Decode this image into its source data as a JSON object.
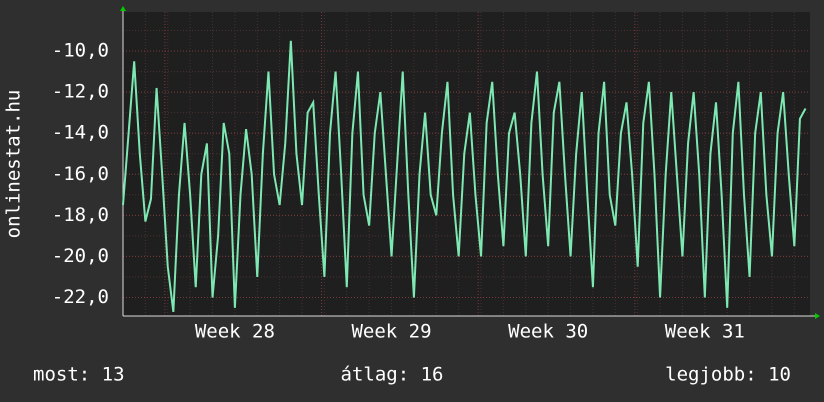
{
  "chart_data": {
    "type": "line",
    "y_label": "onlinestat.hu",
    "x": [
      0,
      0.25,
      0.5,
      0.75,
      1,
      1.25,
      1.5,
      1.75,
      2,
      2.25,
      2.5,
      2.75,
      3,
      3.25,
      3.5,
      3.75,
      4,
      4.25,
      4.5,
      4.75,
      5,
      5.25,
      5.5,
      5.75,
      6,
      6.25,
      6.5,
      6.75,
      7,
      7.25,
      7.5,
      7.75,
      8,
      8.25,
      8.5,
      8.75,
      9,
      9.25,
      9.5,
      9.75,
      10,
      10.25,
      10.5,
      10.75,
      11,
      11.25,
      11.5,
      11.75,
      12,
      12.25,
      12.5,
      12.75,
      13,
      13.25,
      13.5,
      13.75,
      14,
      14.25,
      14.5,
      14.75,
      15,
      15.25,
      15.5,
      15.75,
      16,
      16.25,
      16.5,
      16.75,
      17,
      17.25,
      17.5,
      17.75,
      18,
      18.25,
      18.5,
      18.75,
      19,
      19.25,
      19.5,
      19.75,
      20,
      20.25,
      20.5,
      20.75,
      21,
      21.25,
      21.5,
      21.75,
      22,
      22.25,
      22.5,
      22.75,
      23,
      23.25,
      23.5,
      23.75,
      24,
      24.25,
      24.5,
      24.75,
      25,
      25.25,
      25.5,
      25.75,
      26,
      26.25,
      26.5,
      26.75,
      27,
      27.25,
      27.5,
      27.75,
      28,
      28.25,
      28.5,
      28.75,
      29,
      29.25,
      29.5,
      29.75,
      30,
      30.25,
      30.5
    ],
    "series": [
      {
        "name": "onlinestat.hu",
        "color": "#7de8b2",
        "values": [
          -17.5,
          -14,
          -10.5,
          -15,
          -18.3,
          -17.2,
          -11.8,
          -16,
          -20.5,
          -22.7,
          -17,
          -13.5,
          -17,
          -21.5,
          -16,
          -14.5,
          -22,
          -19,
          -13.5,
          -15,
          -22.5,
          -17,
          -13.8,
          -16,
          -21,
          -15,
          -11,
          -16,
          -17.5,
          -14.5,
          -9.5,
          -15,
          -17.5,
          -13,
          -12.5,
          -17,
          -21,
          -14,
          -11,
          -16,
          -21.5,
          -14,
          -11,
          -17,
          -18.5,
          -14,
          -12,
          -16,
          -20,
          -15.5,
          -11,
          -17,
          -22,
          -16,
          -13,
          -17,
          -18,
          -14,
          -11.5,
          -17,
          -20,
          -15,
          -13,
          -17,
          -20,
          -13.5,
          -11.5,
          -16,
          -19.5,
          -14,
          -13,
          -16,
          -20,
          -13.5,
          -11,
          -16,
          -19.5,
          -13,
          -11.5,
          -16,
          -20,
          -15,
          -12,
          -17,
          -21.5,
          -14,
          -11.5,
          -17,
          -18.5,
          -14,
          -12.5,
          -16,
          -20.5,
          -13.5,
          -11.5,
          -16,
          -22,
          -16,
          -12,
          -16,
          -20,
          -14.5,
          -12,
          -16,
          -22,
          -15,
          -12.5,
          -17,
          -22.5,
          -14,
          -11.5,
          -17,
          -21,
          -14,
          -12,
          -17,
          -20,
          -14,
          -12,
          -16,
          -19.5,
          -13.3,
          -12.8
        ]
      }
    ],
    "xlim": [
      0,
      30.7
    ],
    "xticks": [
      {
        "value": 5,
        "label": "Week 28"
      },
      {
        "value": 12,
        "label": "Week 29"
      },
      {
        "value": 19,
        "label": "Week 30"
      },
      {
        "value": 26,
        "label": "Week 31"
      }
    ],
    "ylim": [
      -22.9,
      -8.1
    ],
    "yticks": [
      {
        "value": -22,
        "label": "-22,0"
      },
      {
        "value": -20,
        "label": "-20,0"
      },
      {
        "value": -18,
        "label": "-18,0"
      },
      {
        "value": -16,
        "label": "-16,0"
      },
      {
        "value": -14,
        "label": "-14,0"
      },
      {
        "value": -12,
        "label": "-12,0"
      },
      {
        "value": -10,
        "label": "-10,0"
      }
    ],
    "grid": true,
    "footer": [
      "most: 13",
      "átlag: 16",
      "legjobb: 10"
    ]
  }
}
